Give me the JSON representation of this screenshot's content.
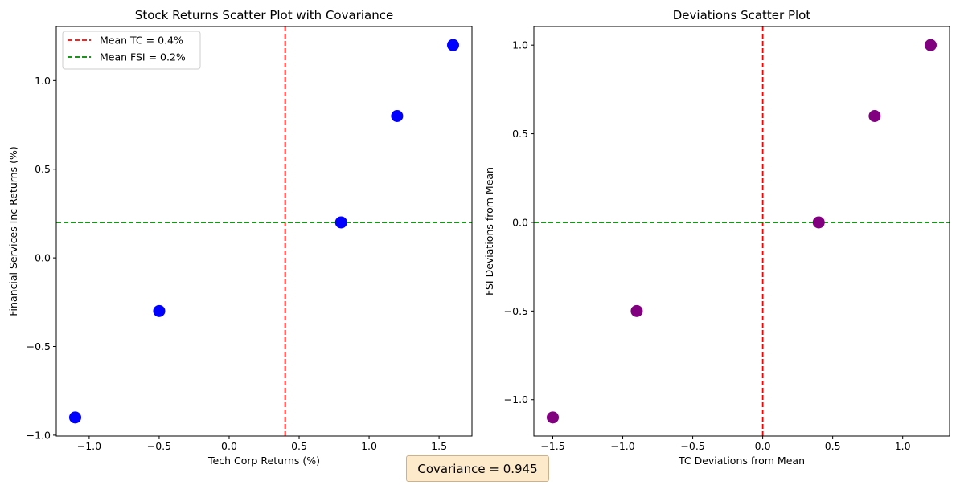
{
  "chart_data": [
    {
      "type": "scatter",
      "title": "Stock Returns Scatter Plot with Covariance",
      "xlabel": "Tech Corp Returns (%)",
      "ylabel": "Financial Services Inc Returns (%)",
      "xlim": [
        -1.235,
        1.735
      ],
      "ylim": [
        -1.005,
        1.305
      ],
      "xticks": [
        -1.0,
        -0.5,
        0.0,
        0.5,
        1.0,
        1.5
      ],
      "xtick_labels": [
        "−1.0",
        "−0.5",
        "0.0",
        "0.5",
        "1.0",
        "1.5"
      ],
      "yticks": [
        -1.0,
        -0.5,
        0.0,
        0.5,
        1.0
      ],
      "ytick_labels": [
        "−1.0",
        "−0.5",
        "0.0",
        "0.5",
        "1.0"
      ],
      "grid": false,
      "legend_position": "top-left",
      "point_color": "#0000ff",
      "points": [
        {
          "x": -1.1,
          "y": -0.9
        },
        {
          "x": -0.5,
          "y": -0.3
        },
        {
          "x": 0.8,
          "y": 0.2
        },
        {
          "x": 1.2,
          "y": 0.8
        },
        {
          "x": 1.6,
          "y": 1.2
        }
      ],
      "reference_lines": [
        {
          "orientation": "vertical",
          "value": 0.4,
          "color": "#ff0000",
          "style": "dashed",
          "label": "Mean TC = 0.4%"
        },
        {
          "orientation": "horizontal",
          "value": 0.2,
          "color": "#008000",
          "style": "dashed",
          "label": "Mean FSI = 0.2%"
        }
      ]
    },
    {
      "type": "scatter",
      "title": "Deviations Scatter Plot",
      "xlabel": "TC Deviations from Mean",
      "ylabel": "FSI Deviations from Mean",
      "xlim": [
        -1.635,
        1.335
      ],
      "ylim": [
        -1.205,
        1.105
      ],
      "xticks": [
        -1.5,
        -1.0,
        -0.5,
        0.0,
        0.5,
        1.0
      ],
      "xtick_labels": [
        "−1.5",
        "−1.0",
        "−0.5",
        "0.0",
        "0.5",
        "1.0"
      ],
      "yticks": [
        -1.0,
        -0.5,
        0.0,
        0.5,
        1.0
      ],
      "ytick_labels": [
        "−1.0",
        "−0.5",
        "0.0",
        "0.5",
        "1.0"
      ],
      "grid": false,
      "point_color": "#800080",
      "points": [
        {
          "x": -1.5,
          "y": -1.1
        },
        {
          "x": -0.9,
          "y": -0.5
        },
        {
          "x": 0.4,
          "y": 0.0
        },
        {
          "x": 0.8,
          "y": 0.6
        },
        {
          "x": 1.2,
          "y": 1.0
        }
      ],
      "reference_lines": [
        {
          "orientation": "vertical",
          "value": 0.0,
          "color": "#ff0000",
          "style": "dashed"
        },
        {
          "orientation": "horizontal",
          "value": 0.0,
          "color": "#008000",
          "style": "dashed"
        }
      ]
    }
  ],
  "annotation": {
    "text": "Covariance = 0.945",
    "background": "#fdeacb"
  }
}
